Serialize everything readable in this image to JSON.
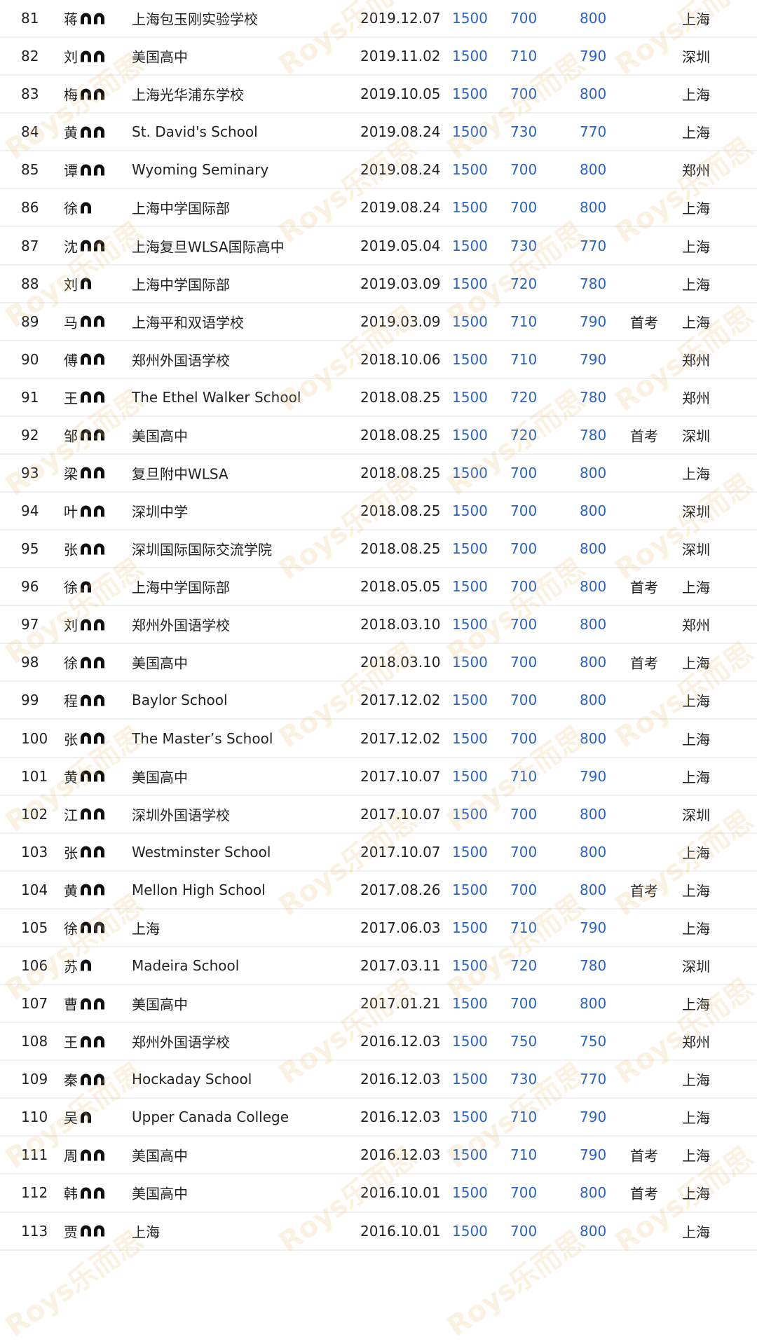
{
  "watermark": "Roys乐而思",
  "colors": {
    "score": "#2a63c4",
    "text": "#222222",
    "divider": "#f0f0f0"
  },
  "rows": [
    {
      "rank": "81",
      "surname": "蒋",
      "masked": 2,
      "school": "上海包玉刚实验学校",
      "date": "2019.12.07",
      "total": "1500",
      "s1": "700",
      "s2": "800",
      "note": "",
      "city": "上海"
    },
    {
      "rank": "82",
      "surname": "刘",
      "masked": 2,
      "school": "美国高中",
      "date": "2019.11.02",
      "total": "1500",
      "s1": "710",
      "s2": "790",
      "note": "",
      "city": "深圳"
    },
    {
      "rank": "83",
      "surname": "梅",
      "masked": 2,
      "school": "上海光华浦东学校",
      "date": "2019.10.05",
      "total": "1500",
      "s1": "700",
      "s2": "800",
      "note": "",
      "city": "上海"
    },
    {
      "rank": "84",
      "surname": "黄",
      "masked": 2,
      "school": "St. David's School",
      "date": "2019.08.24",
      "total": "1500",
      "s1": "730",
      "s2": "770",
      "note": "",
      "city": "上海"
    },
    {
      "rank": "85",
      "surname": "谭",
      "masked": 2,
      "school": "Wyoming Seminary",
      "date": "2019.08.24",
      "total": "1500",
      "s1": "700",
      "s2": "800",
      "note": "",
      "city": "郑州"
    },
    {
      "rank": "86",
      "surname": "徐",
      "masked": 1,
      "school": "上海中学国际部",
      "date": "2019.08.24",
      "total": "1500",
      "s1": "700",
      "s2": "800",
      "note": "",
      "city": "上海"
    },
    {
      "rank": "87",
      "surname": "沈",
      "masked": 2,
      "school": "上海复旦WLSA国际高中",
      "date": "2019.05.04",
      "total": "1500",
      "s1": "730",
      "s2": "770",
      "note": "",
      "city": "上海"
    },
    {
      "rank": "88",
      "surname": "刘",
      "masked": 1,
      "school": "上海中学国际部",
      "date": "2019.03.09",
      "total": "1500",
      "s1": "720",
      "s2": "780",
      "note": "",
      "city": "上海"
    },
    {
      "rank": "89",
      "surname": "马",
      "masked": 2,
      "school": "上海平和双语学校",
      "date": "2019.03.09",
      "total": "1500",
      "s1": "710",
      "s2": "790",
      "note": "首考",
      "city": "上海"
    },
    {
      "rank": "90",
      "surname": "傅",
      "masked": 2,
      "school": "郑州外国语学校",
      "date": "2018.10.06",
      "total": "1500",
      "s1": "710",
      "s2": "790",
      "note": "",
      "city": "郑州"
    },
    {
      "rank": "91",
      "surname": "王",
      "masked": 2,
      "school": "The Ethel Walker School",
      "date": "2018.08.25",
      "total": "1500",
      "s1": "720",
      "s2": "780",
      "note": "",
      "city": "郑州"
    },
    {
      "rank": "92",
      "surname": "邹",
      "masked": 2,
      "school": "美国高中",
      "date": "2018.08.25",
      "total": "1500",
      "s1": "720",
      "s2": "780",
      "note": "首考",
      "city": "深圳"
    },
    {
      "rank": "93",
      "surname": "梁",
      "masked": 2,
      "school": "复旦附中WLSA",
      "date": "2018.08.25",
      "total": "1500",
      "s1": "700",
      "s2": "800",
      "note": "",
      "city": "上海"
    },
    {
      "rank": "94",
      "surname": "叶",
      "masked": 2,
      "school": "深圳中学",
      "date": "2018.08.25",
      "total": "1500",
      "s1": "700",
      "s2": "800",
      "note": "",
      "city": "深圳"
    },
    {
      "rank": "95",
      "surname": "张",
      "masked": 2,
      "school": "深圳国际国际交流学院",
      "date": "2018.08.25",
      "total": "1500",
      "s1": "700",
      "s2": "800",
      "note": "",
      "city": "深圳"
    },
    {
      "rank": "96",
      "surname": "徐",
      "masked": 1,
      "school": "上海中学国际部",
      "date": "2018.05.05",
      "total": "1500",
      "s1": "700",
      "s2": "800",
      "note": "首考",
      "city": "上海"
    },
    {
      "rank": "97",
      "surname": "刘",
      "masked": 2,
      "school": "郑州外国语学校",
      "date": "2018.03.10",
      "total": "1500",
      "s1": "700",
      "s2": "800",
      "note": "",
      "city": "郑州"
    },
    {
      "rank": "98",
      "surname": "徐",
      "masked": 2,
      "school": "美国高中",
      "date": "2018.03.10",
      "total": "1500",
      "s1": "700",
      "s2": "800",
      "note": "首考",
      "city": "上海"
    },
    {
      "rank": "99",
      "surname": "程",
      "masked": 2,
      "school": "Baylor School",
      "date": "2017.12.02",
      "total": "1500",
      "s1": "700",
      "s2": "800",
      "note": "",
      "city": "上海"
    },
    {
      "rank": "100",
      "surname": "张",
      "masked": 2,
      "school": "The Master’s School",
      "date": "2017.12.02",
      "total": "1500",
      "s1": "700",
      "s2": "800",
      "note": "",
      "city": "上海"
    },
    {
      "rank": "101",
      "surname": "黄",
      "masked": 2,
      "school": "美国高中",
      "date": "2017.10.07",
      "total": "1500",
      "s1": "710",
      "s2": "790",
      "note": "",
      "city": "上海"
    },
    {
      "rank": "102",
      "surname": "江",
      "masked": 2,
      "school": "深圳外国语学校",
      "date": "2017.10.07",
      "total": "1500",
      "s1": "700",
      "s2": "800",
      "note": "",
      "city": "深圳"
    },
    {
      "rank": "103",
      "surname": "张",
      "masked": 2,
      "school": "Westminster School",
      "date": "2017.10.07",
      "total": "1500",
      "s1": "700",
      "s2": "800",
      "note": "",
      "city": "上海"
    },
    {
      "rank": "104",
      "surname": "黄",
      "masked": 2,
      "school": "Mellon High School",
      "date": "2017.08.26",
      "total": "1500",
      "s1": "700",
      "s2": "800",
      "note": "首考",
      "city": "上海"
    },
    {
      "rank": "105",
      "surname": "徐",
      "masked": 2,
      "school": "上海",
      "date": "2017.06.03",
      "total": "1500",
      "s1": "710",
      "s2": "790",
      "note": "",
      "city": "上海"
    },
    {
      "rank": "106",
      "surname": "苏",
      "masked": 1,
      "school": "Madeira School",
      "date": "2017.03.11",
      "total": "1500",
      "s1": "720",
      "s2": "780",
      "note": "",
      "city": "深圳"
    },
    {
      "rank": "107",
      "surname": "曹",
      "masked": 2,
      "school": "美国高中",
      "date": "2017.01.21",
      "total": "1500",
      "s1": "700",
      "s2": "800",
      "note": "",
      "city": "上海"
    },
    {
      "rank": "108",
      "surname": "王",
      "masked": 2,
      "school": "郑州外国语学校",
      "date": "2016.12.03",
      "total": "1500",
      "s1": "750",
      "s2": "750",
      "note": "",
      "city": "郑州"
    },
    {
      "rank": "109",
      "surname": "秦",
      "masked": 2,
      "school": "Hockaday School",
      "date": "2016.12.03",
      "total": "1500",
      "s1": "730",
      "s2": "770",
      "note": "",
      "city": "上海"
    },
    {
      "rank": "110",
      "surname": "吴",
      "masked": 1,
      "school": "Upper Canada College",
      "date": "2016.12.03",
      "total": "1500",
      "s1": "710",
      "s2": "790",
      "note": "",
      "city": "上海"
    },
    {
      "rank": "111",
      "surname": "周",
      "masked": 2,
      "school": "美国高中",
      "date": "2016.12.03",
      "total": "1500",
      "s1": "710",
      "s2": "790",
      "note": "首考",
      "city": "上海"
    },
    {
      "rank": "112",
      "surname": "韩",
      "masked": 2,
      "school": "美国高中",
      "date": "2016.10.01",
      "total": "1500",
      "s1": "700",
      "s2": "800",
      "note": "首考",
      "city": "上海"
    },
    {
      "rank": "113",
      "surname": "贾",
      "masked": 2,
      "school": "上海",
      "date": "2016.10.01",
      "total": "1500",
      "s1": "700",
      "s2": "800",
      "note": "",
      "city": "上海"
    }
  ]
}
